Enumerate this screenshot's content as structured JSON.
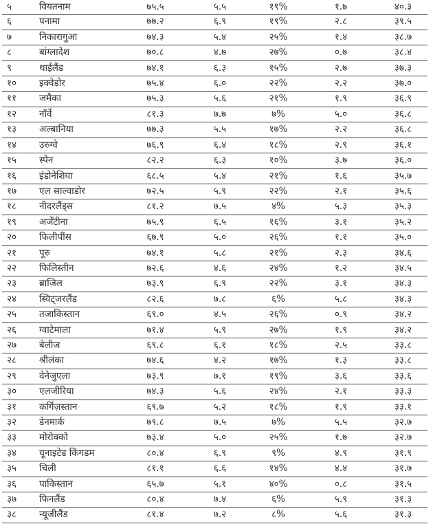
{
  "page": {
    "background_color": "#ffffff",
    "line_color": "#3c3c3c",
    "text_color": "#2e2e2e"
  },
  "table": {
    "fields": [
      "rank",
      "country",
      "life_expectancy",
      "wellbeing",
      "inequality",
      "footprint",
      "hpi"
    ],
    "rows": [
      {
        "rank": "५",
        "country": "वियतनाम",
        "life_expectancy": "७५.५",
        "wellbeing": "५.५",
        "inequality": "१९%",
        "footprint": "१.७",
        "hpi": "४०.३"
      },
      {
        "rank": "६",
        "country": "पनामा",
        "life_expectancy": "७७.२",
        "wellbeing": "६.९",
        "inequality": "१९%",
        "footprint": "२.८",
        "hpi": "३९.५"
      },
      {
        "rank": "७",
        "country": "निकारागुआ",
        "life_expectancy": "७४.३",
        "wellbeing": "५.४",
        "inequality": "२५%",
        "footprint": "१.४",
        "hpi": "३८.७"
      },
      {
        "rank": "८",
        "country": "बांग्लादेश",
        "life_expectancy": "७०.८",
        "wellbeing": "४.७",
        "inequality": "२७%",
        "footprint": "०.७",
        "hpi": "३८.४"
      },
      {
        "rank": "९",
        "country": "थाईलैंड",
        "life_expectancy": "७४.१",
        "wellbeing": "६.३",
        "inequality": "१५%",
        "footprint": "२.७",
        "hpi": "३७.३"
      },
      {
        "rank": "१०",
        "country": "इक्वेडोर",
        "life_expectancy": "७५.४",
        "wellbeing": "६.०",
        "inequality": "२२%",
        "footprint": "२.२",
        "hpi": "३७.०"
      },
      {
        "rank": "११",
        "country": "जमैका",
        "life_expectancy": "७५.३",
        "wellbeing": "५.६",
        "inequality": "२१%",
        "footprint": "१.९",
        "hpi": "३६.९"
      },
      {
        "rank": "१२",
        "country": "नॉर्वे",
        "life_expectancy": "८१.३",
        "wellbeing": "७.७",
        "inequality": "७%",
        "footprint": "५.०",
        "hpi": "३६.८"
      },
      {
        "rank": "१३",
        "country": "अल्बानिया",
        "life_expectancy": "७७.३",
        "wellbeing": "५.५",
        "inequality": "१७%",
        "footprint": "२.२",
        "hpi": "३६.८"
      },
      {
        "rank": "१४",
        "country": "उरुग्वे",
        "life_expectancy": "७६.९",
        "wellbeing": "६.४",
        "inequality": "१८%",
        "footprint": "२.९",
        "hpi": "३६.१"
      },
      {
        "rank": "१५",
        "country": "स्पेन",
        "life_expectancy": "८२.२",
        "wellbeing": "६.३",
        "inequality": "१०%",
        "footprint": "३.७",
        "hpi": "३६.०"
      },
      {
        "rank": "१६",
        "country": "इंडोनेशिया",
        "life_expectancy": "६८.५",
        "wellbeing": "५.४",
        "inequality": "२१%",
        "footprint": "१.६",
        "hpi": "३५.७"
      },
      {
        "rank": "१७",
        "country": "एल साल्वाडोर",
        "life_expectancy": "७२.५",
        "wellbeing": "५.९",
        "inequality": "२२%",
        "footprint": "२.१",
        "hpi": "३५.६"
      },
      {
        "rank": "१८",
        "country": "नीदरलैंड्स",
        "life_expectancy": "८१.२",
        "wellbeing": "७.५",
        "inequality": "४%",
        "footprint": "५.३",
        "hpi": "३५.३"
      },
      {
        "rank": "१९",
        "country": "अर्जेंटीना",
        "life_expectancy": "७५.९",
        "wellbeing": "६.५",
        "inequality": "१६%",
        "footprint": "३.१",
        "hpi": "३५.२"
      },
      {
        "rank": "२०",
        "country": "फिलीपींस",
        "life_expectancy": "६७.९",
        "wellbeing": "५.०",
        "inequality": "२६%",
        "footprint": "१.१",
        "hpi": "३५.०"
      },
      {
        "rank": "२१",
        "country": "पूरु",
        "life_expectancy": "७४.१",
        "wellbeing": "५.८",
        "inequality": "२१%",
        "footprint": "२.३",
        "hpi": "३४.६"
      },
      {
        "rank": "२२",
        "country": "फिलिस्तीन",
        "life_expectancy": "७२.६",
        "wellbeing": "४.६",
        "inequality": "२४%",
        "footprint": "१.२",
        "hpi": "३४.५"
      },
      {
        "rank": "२३",
        "country": "ब्राजिल",
        "life_expectancy": "७३.९",
        "wellbeing": "६.९",
        "inequality": "२२%",
        "footprint": "३.१",
        "hpi": "३४.३"
      },
      {
        "rank": "२४",
        "country": "स्विट्जरलैंड",
        "life_expectancy": "८२.६",
        "wellbeing": "७.८",
        "inequality": "६%",
        "footprint": "५.८",
        "hpi": "३४.३"
      },
      {
        "rank": "२५",
        "country": "तजाकिस्तान",
        "life_expectancy": "६९.०",
        "wellbeing": "४.५",
        "inequality": "२६%",
        "footprint": "०.९",
        "hpi": "३४.२"
      },
      {
        "rank": "२६",
        "country": "ग्वाटेमाला",
        "life_expectancy": "७१.४",
        "wellbeing": "५.९",
        "inequality": "२७%",
        "footprint": "१.९",
        "hpi": "३४.२"
      },
      {
        "rank": "२७",
        "country": "बेलीज",
        "life_expectancy": "६९.८",
        "wellbeing": "६.१",
        "inequality": "१८%",
        "footprint": "२.५",
        "hpi": "३३.८"
      },
      {
        "rank": "२८",
        "country": "श्रीलंका",
        "life_expectancy": "७४.६",
        "wellbeing": "४.२",
        "inequality": "१७%",
        "footprint": "१.३",
        "hpi": "३३.८"
      },
      {
        "rank": "२९",
        "country": "वेनेजुएला",
        "life_expectancy": "७३.९",
        "wellbeing": "७.१",
        "inequality": "१९%",
        "footprint": "३.६",
        "hpi": "३३.६"
      },
      {
        "rank": "३०",
        "country": "एलजीरिया",
        "life_expectancy": "७४.३",
        "wellbeing": "५.६",
        "inequality": "२४%",
        "footprint": "२.१",
        "hpi": "३३.३"
      },
      {
        "rank": "३१",
        "country": "कर्गिज़स्तान",
        "life_expectancy": "६९.७",
        "wellbeing": "५.२",
        "inequality": "१८%",
        "footprint": "१.९",
        "hpi": "३३.१"
      },
      {
        "rank": "३२",
        "country": "डेनमार्क",
        "life_expectancy": "७९.८",
        "wellbeing": "७.५",
        "inequality": "७%",
        "footprint": "५.५",
        "hpi": "३२.७"
      },
      {
        "rank": "३३",
        "country": "मोरोक्को",
        "life_expectancy": "७३.४",
        "wellbeing": "५.०",
        "inequality": "२५%",
        "footprint": "१.७",
        "hpi": "३२.७"
      },
      {
        "rank": "३४",
        "country": "यूनाइटेड किंगडम",
        "life_expectancy": "८०.४",
        "wellbeing": "६.९",
        "inequality": "९%",
        "footprint": "४.९",
        "hpi": "३१.९"
      },
      {
        "rank": "३५",
        "country": "चिली",
        "life_expectancy": "८१.१",
        "wellbeing": "६.६",
        "inequality": "१४%",
        "footprint": "४.४",
        "hpi": "३१.७"
      },
      {
        "rank": "३६",
        "country": "पाकिस्तान",
        "life_expectancy": "६५.७",
        "wellbeing": "५.१",
        "inequality": "४०%",
        "footprint": "०.८",
        "hpi": "३१.५"
      },
      {
        "rank": "३७",
        "country": "फिनलैंड",
        "life_expectancy": "८०.४",
        "wellbeing": "७.४",
        "inequality": "६%",
        "footprint": "५.९",
        "hpi": "३१.३"
      },
      {
        "rank": "३८",
        "country": "न्यूजीलैंड",
        "life_expectancy": "८१.४",
        "wellbeing": "७.२",
        "inequality": "८%",
        "footprint": "५.६",
        "hpi": "३१.३"
      }
    ]
  }
}
